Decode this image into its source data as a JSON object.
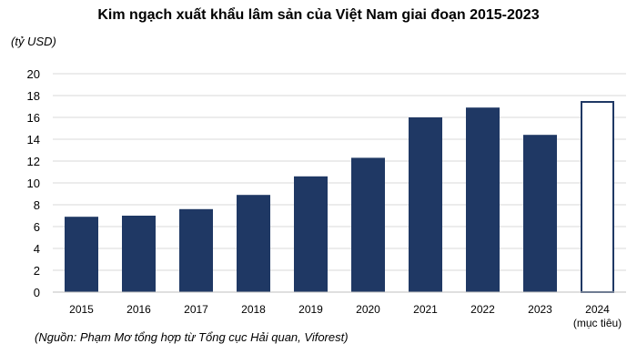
{
  "chart_data": {
    "type": "bar",
    "title": "Kim ngạch xuất khẩu lâm sản của Việt Nam giai đoạn 2015-2023",
    "ylabel": "(tỷ USD)",
    "categories": [
      "2015",
      "2016",
      "2017",
      "2018",
      "2019",
      "2020",
      "2021",
      "2022",
      "2023",
      "2024"
    ],
    "category_sublabels": [
      "",
      "",
      "",
      "",
      "",
      "",
      "",
      "",
      "",
      "(mục tiêu)"
    ],
    "values": [
      6.9,
      7.0,
      7.6,
      8.9,
      10.6,
      12.3,
      16.0,
      16.9,
      14.4,
      17.5
    ],
    "target_flags": [
      false,
      false,
      false,
      false,
      false,
      false,
      false,
      false,
      false,
      true
    ],
    "ylim": [
      0,
      20
    ],
    "yticks": [
      0,
      2,
      4,
      6,
      8,
      10,
      12,
      14,
      16,
      18,
      20
    ],
    "grid": true,
    "legend": "none",
    "colors": {
      "bar": "#1f3864",
      "target_outline": "#1f3864",
      "grid": "#d9d9d9"
    }
  },
  "source_note": "(Nguồn: Phạm Mơ tổng hợp từ Tổng cục Hải quan, Viforest)"
}
